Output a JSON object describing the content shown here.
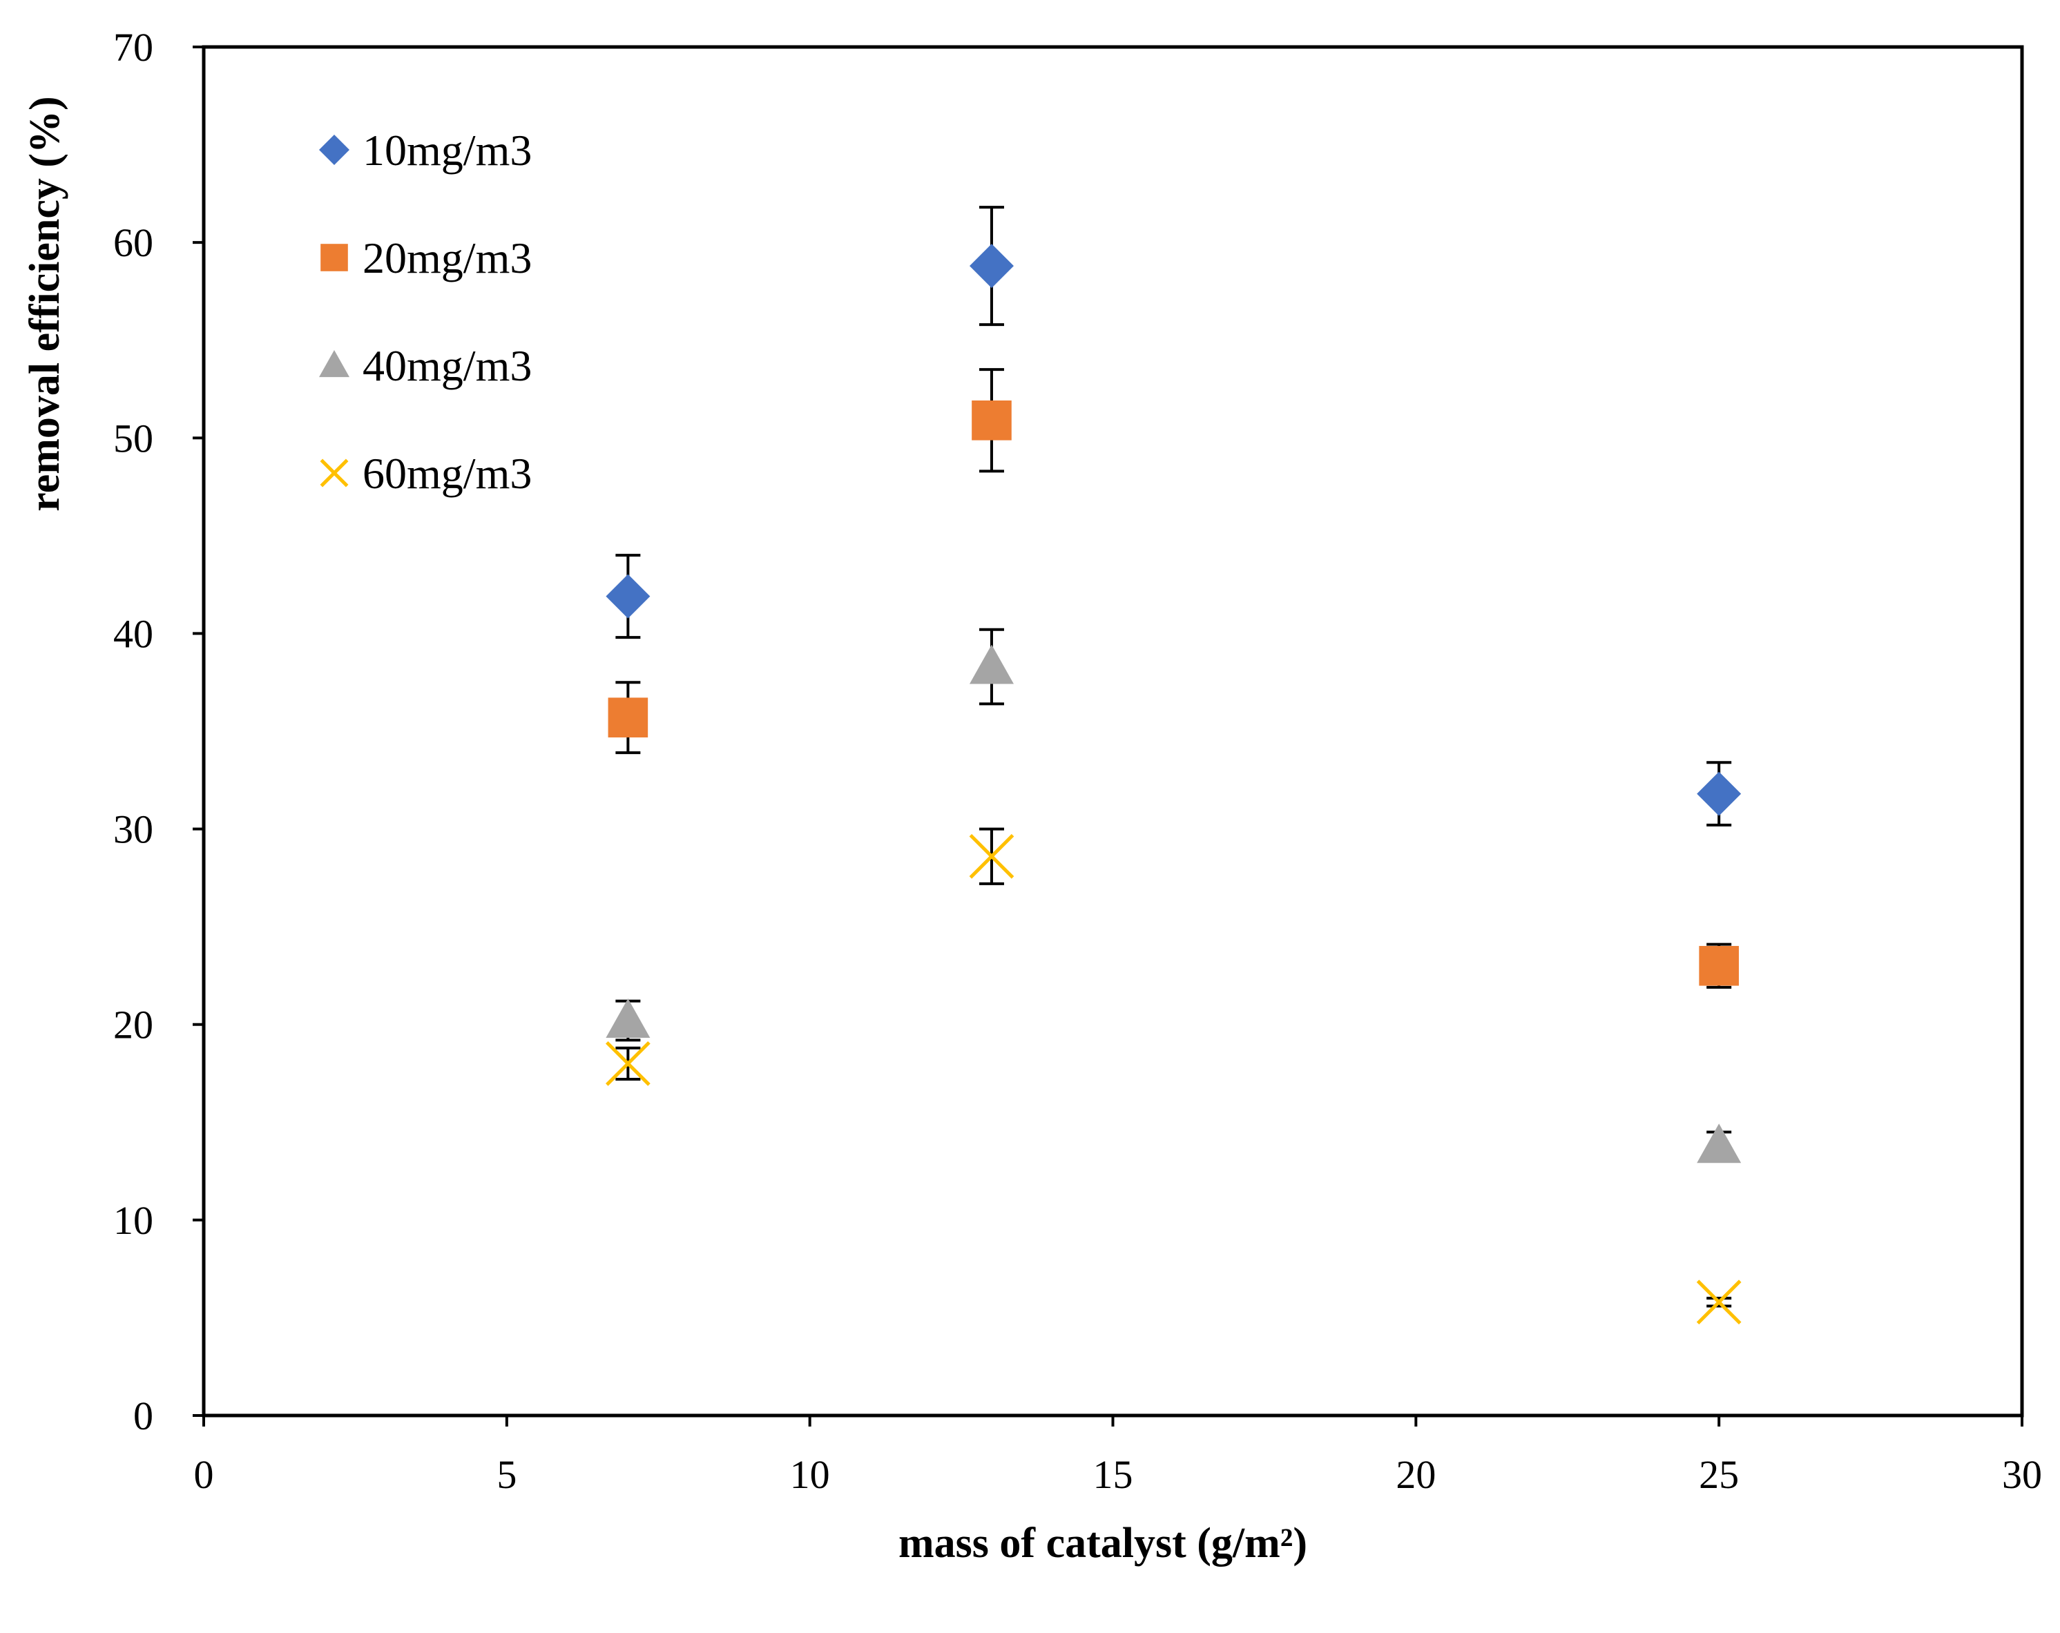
{
  "chart_data": {
    "type": "scatter",
    "title": "",
    "xlabel": "mass of catalyst (g/m²)",
    "ylabel": "removal efficiency (%)",
    "xlim": [
      0,
      30
    ],
    "ylim": [
      0,
      70
    ],
    "x_ticks": [
      0,
      5,
      10,
      15,
      20,
      25,
      30
    ],
    "y_ticks": [
      0,
      10,
      20,
      30,
      40,
      50,
      60,
      70
    ],
    "grid": false,
    "legend_position": "top-left",
    "series": [
      {
        "name": "10mg/m3",
        "marker": "diamond",
        "color": "#4472C4",
        "x": [
          7,
          13,
          25
        ],
        "y": [
          41.9,
          58.8,
          31.8
        ],
        "err": [
          2.1,
          3.0,
          1.6
        ]
      },
      {
        "name": "20mg/m3",
        "marker": "square",
        "color": "#ED7D31",
        "x": [
          7,
          13,
          25
        ],
        "y": [
          35.7,
          50.9,
          23.0
        ],
        "err": [
          1.8,
          2.6,
          1.1
        ]
      },
      {
        "name": "40mg/m3",
        "marker": "triangle",
        "color": "#A5A5A5",
        "x": [
          7,
          13,
          25
        ],
        "y": [
          20.2,
          38.3,
          13.8
        ],
        "err": [
          1.0,
          1.9,
          0.7
        ]
      },
      {
        "name": "60mg/m3",
        "marker": "x",
        "color": "#FFC000",
        "x": [
          7,
          13,
          25
        ],
        "y": [
          18.0,
          28.6,
          5.8
        ],
        "err": [
          0.8,
          1.4,
          0.2
        ]
      }
    ]
  }
}
